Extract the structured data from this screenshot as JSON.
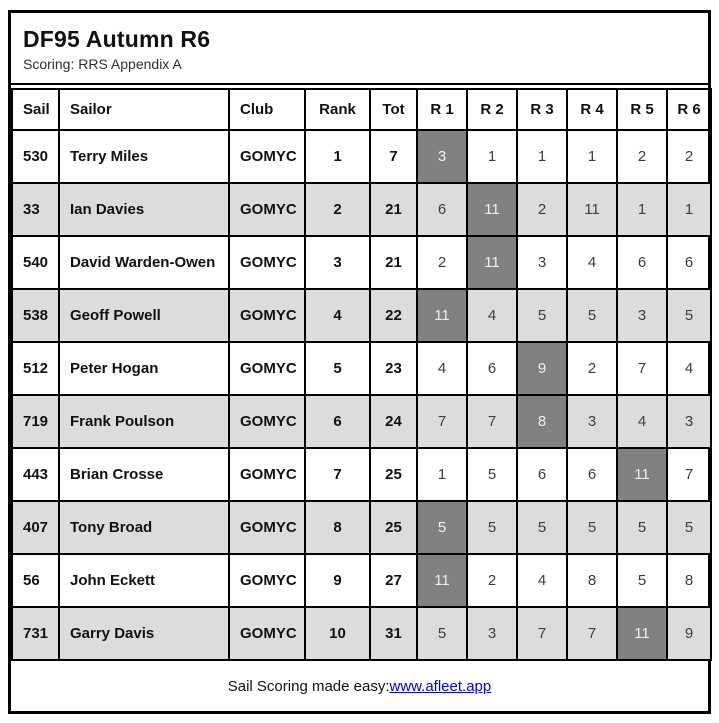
{
  "page": {
    "title": "DF95 Autumn R6",
    "subtitle": "Scoring: RRS Appendix A"
  },
  "table": {
    "columns": [
      "Sail",
      "Sailor",
      "Club",
      "Rank",
      "Tot",
      "R 1",
      "R 2",
      "R 3",
      "R 4",
      "R 5",
      "R 6"
    ],
    "rows": [
      {
        "sail": "530",
        "sailor": "Terry Miles",
        "club": "GOMYC",
        "rank": "1",
        "tot": "7",
        "races": [
          "3",
          "1",
          "1",
          "1",
          "2",
          "2"
        ],
        "discard_race_index": 0
      },
      {
        "sail": "33",
        "sailor": "Ian Davies",
        "club": "GOMYC",
        "rank": "2",
        "tot": "21",
        "races": [
          "6",
          "11",
          "2",
          "11",
          "1",
          "1"
        ],
        "discard_race_index": 1
      },
      {
        "sail": "540",
        "sailor": "David Warden-Owen",
        "club": "GOMYC",
        "rank": "3",
        "tot": "21",
        "races": [
          "2",
          "11",
          "3",
          "4",
          "6",
          "6"
        ],
        "discard_race_index": 1
      },
      {
        "sail": "538",
        "sailor": "Geoff Powell",
        "club": "GOMYC",
        "rank": "4",
        "tot": "22",
        "races": [
          "11",
          "4",
          "5",
          "5",
          "3",
          "5"
        ],
        "discard_race_index": 0
      },
      {
        "sail": "512",
        "sailor": "Peter Hogan",
        "club": "GOMYC",
        "rank": "5",
        "tot": "23",
        "races": [
          "4",
          "6",
          "9",
          "2",
          "7",
          "4"
        ],
        "discard_race_index": 2
      },
      {
        "sail": "719",
        "sailor": "Frank Poulson",
        "club": "GOMYC",
        "rank": "6",
        "tot": "24",
        "races": [
          "7",
          "7",
          "8",
          "3",
          "4",
          "3"
        ],
        "discard_race_index": 2
      },
      {
        "sail": "443",
        "sailor": "Brian Crosse",
        "club": "GOMYC",
        "rank": "7",
        "tot": "25",
        "races": [
          "1",
          "5",
          "6",
          "6",
          "11",
          "7"
        ],
        "discard_race_index": 4
      },
      {
        "sail": "407",
        "sailor": "Tony Broad",
        "club": "GOMYC",
        "rank": "8",
        "tot": "25",
        "races": [
          "5",
          "5",
          "5",
          "5",
          "5",
          "5"
        ],
        "discard_race_index": 0
      },
      {
        "sail": "56",
        "sailor": "John Eckett",
        "club": "GOMYC",
        "rank": "9",
        "tot": "27",
        "races": [
          "11",
          "2",
          "4",
          "8",
          "5",
          "8"
        ],
        "discard_race_index": 0
      },
      {
        "sail": "731",
        "sailor": "Garry Davis",
        "club": "GOMYC",
        "rank": "10",
        "tot": "31",
        "races": [
          "5",
          "3",
          "7",
          "7",
          "11",
          "9"
        ],
        "discard_race_index": 4
      }
    ]
  },
  "footer": {
    "text": "Sail Scoring made easy: ",
    "link_text": "www.afleet.app"
  },
  "colors": {
    "discard_bg": "#818181",
    "discard_text": "#f1f1f1",
    "alt_row_bg": "#dcdcdc",
    "border": "#000000",
    "link": "#0000ee"
  }
}
